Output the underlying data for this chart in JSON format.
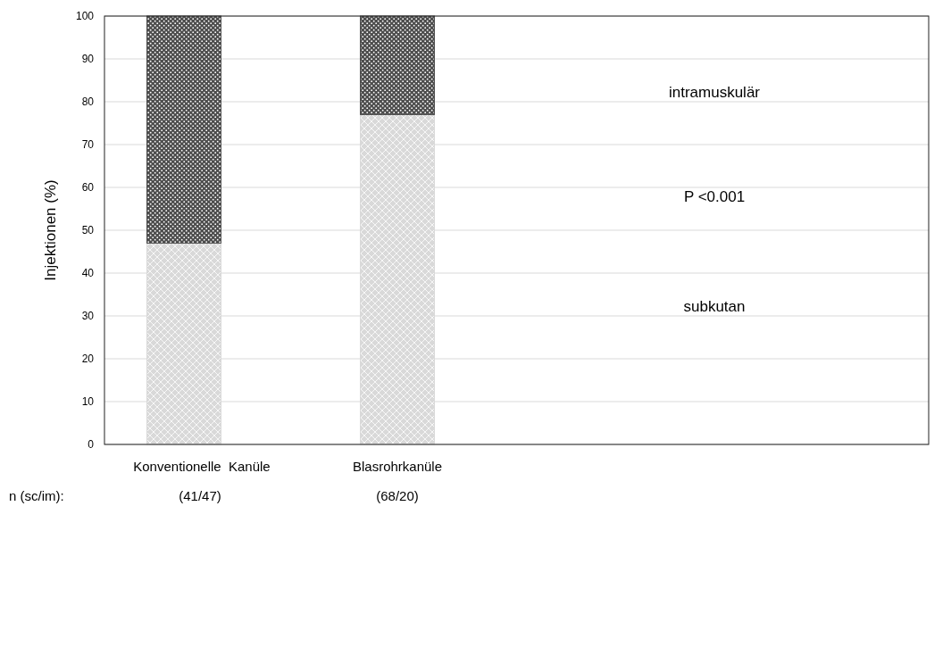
{
  "chart_data": {
    "type": "bar",
    "stacked": true,
    "ylabel": "Injektionen (%)",
    "categories": [
      "Konventionelle  Kanüle",
      "Blasrohrkanüle"
    ],
    "series": [
      {
        "name": "subkutan",
        "color": "#d9d9d9",
        "values": [
          47,
          77
        ]
      },
      {
        "name": "intramuskulär",
        "color": "#4d4d4d",
        "values": [
          53,
          23
        ]
      }
    ],
    "ylim": [
      0,
      100
    ],
    "yticks": [
      0,
      10,
      20,
      30,
      40,
      50,
      60,
      70,
      80,
      90,
      100
    ],
    "grid": "y",
    "legend": "right",
    "annotations": [
      "P <0.001",
      "n (sc/im):",
      "(41/47)",
      "(68/20)"
    ]
  }
}
